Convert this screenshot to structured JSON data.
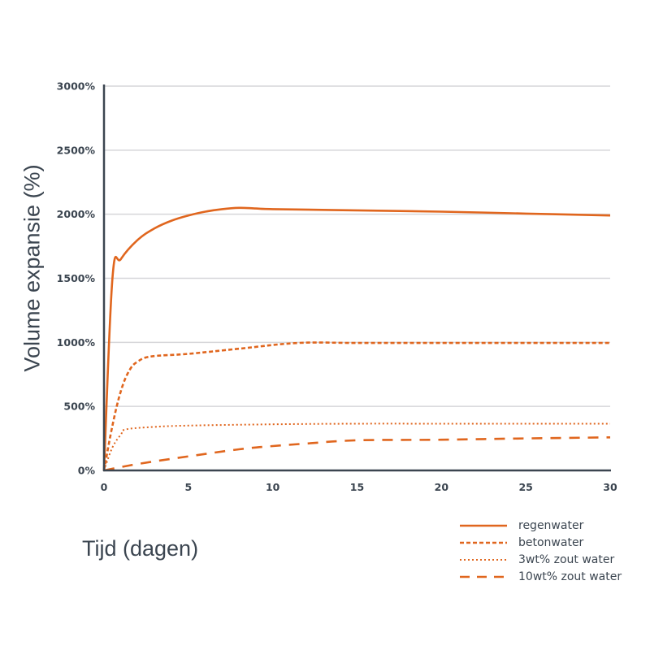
{
  "chart_data": {
    "type": "line",
    "title": "",
    "xlabel": "Tijd (dagen)",
    "ylabel": "Volume expansie (%)",
    "xlim": [
      0,
      30
    ],
    "ylim": [
      0,
      3000
    ],
    "x_ticks": [
      0,
      5,
      10,
      15,
      20,
      25,
      30
    ],
    "y_ticks": [
      0,
      500,
      1000,
      1500,
      2000,
      2500,
      3000
    ],
    "y_tick_labels": [
      "0%",
      "500%",
      "1000%",
      "1500%",
      "2000%",
      "2500%",
      "3000%"
    ],
    "grid": "horizontal",
    "legend_position": "bottom-right",
    "color": "#e0661e",
    "series": [
      {
        "name": "regenwater",
        "style": "solid",
        "x": [
          0,
          0.5,
          1,
          2,
          3,
          4,
          5,
          6,
          7,
          8,
          9,
          10,
          15,
          20,
          25,
          30
        ],
        "y": [
          0,
          1500,
          1650,
          1800,
          1890,
          1950,
          1990,
          2020,
          2040,
          2050,
          2045,
          2040,
          2030,
          2020,
          2005,
          1990
        ]
      },
      {
        "name": "betonwater",
        "style": "dashed-short",
        "x": [
          0,
          0.5,
          1,
          1.5,
          2,
          2.8,
          5,
          8,
          11.5,
          15,
          20,
          25,
          30
        ],
        "y": [
          0,
          350,
          620,
          780,
          850,
          890,
          910,
          950,
          995,
          995,
          995,
          995,
          995
        ]
      },
      {
        "name": "3wt% zout water",
        "style": "dotted",
        "x": [
          0,
          0.5,
          1,
          1.3,
          3,
          5,
          10,
          15,
          20,
          25,
          30
        ],
        "y": [
          0,
          180,
          280,
          320,
          340,
          350,
          360,
          365,
          365,
          365,
          365
        ]
      },
      {
        "name": "10wt% zout water",
        "style": "dashed-long",
        "x": [
          0,
          2,
          5,
          8,
          10,
          12,
          15,
          20,
          25,
          30
        ],
        "y": [
          0,
          50,
          110,
          165,
          190,
          210,
          235,
          240,
          250,
          258
        ]
      }
    ]
  },
  "labels": {
    "xlabel": "Tijd (dagen)",
    "ylabel": "Volume expansie (%)"
  },
  "legend": [
    {
      "label": "regenwater",
      "style": "solid"
    },
    {
      "label": "betonwater",
      "style": "dashed-short"
    },
    {
      "label": "3wt% zout water",
      "style": "dotted"
    },
    {
      "label": "10wt% zout water",
      "style": "dashed-long"
    }
  ]
}
